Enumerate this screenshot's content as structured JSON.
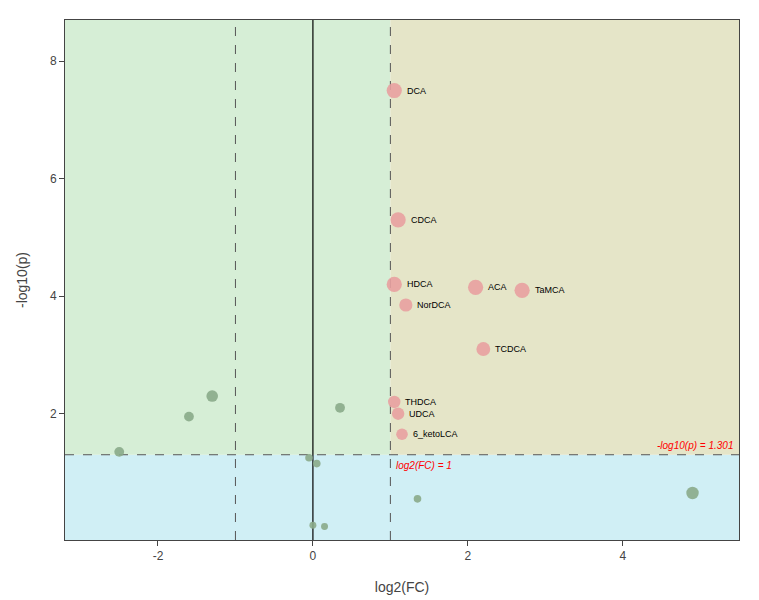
{
  "chart_data": {
    "type": "scatter",
    "xlabel": "log2(FC)",
    "ylabel": "-log10(p)",
    "xlim": [
      -3.2,
      5.5
    ],
    "ylim": [
      -0.15,
      8.7
    ],
    "xticks": [
      -2,
      0,
      2,
      4
    ],
    "yticks": [
      2,
      4,
      6,
      8
    ],
    "grid": false,
    "points": [
      {
        "label": "DCA",
        "x": 1.05,
        "y": 7.5,
        "size": 120,
        "color": "#e8a0a0"
      },
      {
        "label": "CDCA",
        "x": 1.1,
        "y": 5.3,
        "size": 120,
        "color": "#e8a0a0"
      },
      {
        "label": "HDCA",
        "x": 1.05,
        "y": 4.2,
        "size": 120,
        "color": "#e8a0a0"
      },
      {
        "label": "NorDCA",
        "x": 1.2,
        "y": 3.85,
        "size": 90,
        "color": "#e8a0a0"
      },
      {
        "label": "ACA",
        "x": 2.1,
        "y": 4.15,
        "size": 120,
        "color": "#e8a0a0"
      },
      {
        "label": "TaMCA",
        "x": 2.7,
        "y": 4.1,
        "size": 120,
        "color": "#e8a0a0"
      },
      {
        "label": "TCDCA",
        "x": 2.2,
        "y": 3.1,
        "size": 100,
        "color": "#e8a0a0"
      },
      {
        "label": "THDCA",
        "x": 1.05,
        "y": 2.2,
        "size": 80,
        "color": "#e8a0a0"
      },
      {
        "label": "UDCA",
        "x": 1.1,
        "y": 2.0,
        "size": 80,
        "color": "#e8a0a0"
      },
      {
        "label": "6_ketoLCA",
        "x": 1.15,
        "y": 1.65,
        "size": 70,
        "color": "#e8a0a0"
      },
      {
        "x": -1.3,
        "y": 2.3,
        "size": 70,
        "color": "#8aaa8a"
      },
      {
        "x": -1.6,
        "y": 1.95,
        "size": 50,
        "color": "#8aaa8a"
      },
      {
        "x": 0.35,
        "y": 2.1,
        "size": 50,
        "color": "#8aaa8a"
      },
      {
        "x": -2.5,
        "y": 1.35,
        "size": 50,
        "color": "#8aaa8a"
      },
      {
        "x": -0.05,
        "y": 1.25,
        "size": 30,
        "color": "#8aaa8a"
      },
      {
        "x": 0.05,
        "y": 1.15,
        "size": 30,
        "color": "#8aaa8a"
      },
      {
        "x": 1.35,
        "y": 0.55,
        "size": 30,
        "color": "#8aaa8a"
      },
      {
        "x": 4.9,
        "y": 0.65,
        "size": 80,
        "color": "#8aaa8a"
      },
      {
        "x": 0.0,
        "y": 0.1,
        "size": 25,
        "color": "#8aaa8a"
      },
      {
        "x": 0.15,
        "y": 0.08,
        "size": 25,
        "color": "#8aaa8a"
      }
    ],
    "hline_y": 1.301,
    "vlines_x": [
      1.0,
      -1.0
    ],
    "solid_vline_x": 0,
    "region_colors": {
      "below": "#d0eff5",
      "upper_left": "#d6eed6",
      "upper_right": "#e5e5c8"
    },
    "annotations": [
      {
        "text": "-log10(p) = 1.301",
        "color": "red"
      },
      {
        "text": "log2(FC) = 1",
        "color": "red"
      }
    ]
  }
}
